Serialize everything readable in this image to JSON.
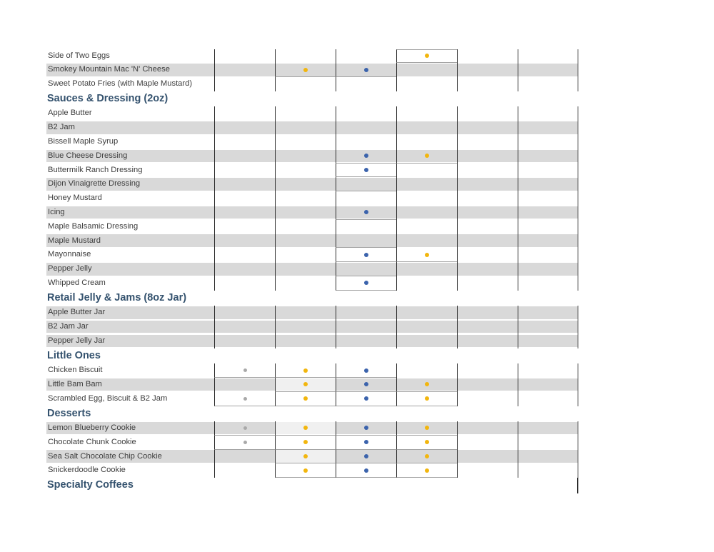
{
  "colors": {
    "stripe": "#d9d9d9",
    "column_line": "#2d2d2d",
    "hairline": "#a3a3a3",
    "header_text": "#34526e",
    "item_text": "#3d3d3d",
    "dot_blue": "#3b63ac",
    "dot_yellow": "#f2b60e",
    "dot_gray": "#a9a9a9"
  },
  "marker_columns": 6,
  "sections": [
    {
      "header": null,
      "rows": [
        {
          "label": "Side of Two Eggs",
          "bg": "white",
          "dots": {
            "4": "yellow"
          },
          "hairlines": [
            4
          ],
          "top_hairlines": [
            4
          ]
        },
        {
          "label": "Smokey Mountain Mac 'N' Cheese",
          "bg": "gray",
          "dots": {
            "2": "yellow",
            "3": "blue"
          },
          "hairlines": [
            2,
            3
          ]
        },
        {
          "label": "Sweet Potato Fries (with Maple Mustard)",
          "bg": "white",
          "dots": {}
        }
      ]
    },
    {
      "header": "Sauces & Dressing (2oz)",
      "rows": [
        {
          "label": "Apple Butter",
          "bg": "white",
          "dots": {}
        },
        {
          "label": "B2 Jam",
          "bg": "gray",
          "dots": {}
        },
        {
          "label": "Bissell Maple Syrup",
          "bg": "white",
          "dots": {}
        },
        {
          "label": "Blue Cheese Dressing",
          "bg": "gray",
          "dots": {
            "3": "blue",
            "4": "yellow"
          },
          "hairlines": [
            3,
            4
          ]
        },
        {
          "label": "Buttermilk Ranch Dressing",
          "bg": "white",
          "dots": {
            "3": "blue"
          },
          "hairlines": [
            3
          ]
        },
        {
          "label": "Dijon Vinaigrette Dressing",
          "bg": "gray",
          "dots": {},
          "hairlines": [
            3
          ]
        },
        {
          "label": "Honey Mustard",
          "bg": "white",
          "dots": {}
        },
        {
          "label": "Icing",
          "bg": "gray",
          "dots": {
            "3": "blue"
          },
          "hairlines": [
            3
          ]
        },
        {
          "label": "Maple Balsamic Dressing",
          "bg": "white",
          "dots": {}
        },
        {
          "label": "Maple Mustard",
          "bg": "gray",
          "dots": {},
          "hairlines": [
            3
          ]
        },
        {
          "label": "Mayonnaise",
          "bg": "white",
          "dots": {
            "3": "blue",
            "4": "yellow"
          },
          "hairlines": [
            3,
            4
          ]
        },
        {
          "label": "Pepper Jelly",
          "bg": "gray",
          "dots": {},
          "hairlines": [
            3
          ]
        },
        {
          "label": "Whipped Cream",
          "bg": "white",
          "dots": {
            "3": "blue"
          },
          "hairlines": [
            3
          ]
        }
      ]
    },
    {
      "header": "Retail Jelly & Jams (8oz Jar)",
      "rows": [
        {
          "label": "Apple Butter Jar",
          "bg": "gray",
          "dots": {}
        },
        {
          "label": "B2 Jam Jar",
          "bg": "gray",
          "dots": {}
        },
        {
          "label": "Pepper Jelly Jar",
          "bg": "gray",
          "dots": {}
        }
      ]
    },
    {
      "header": "Little Ones",
      "rows": [
        {
          "label": "Chicken Biscuit",
          "bg": "white",
          "dots": {
            "1": "gray",
            "2": "yellow",
            "3": "blue"
          },
          "hairlines": [
            1,
            2,
            3
          ]
        },
        {
          "label": "Little Bam Bam",
          "bg": "gray",
          "dots": {
            "2": "yellow",
            "3": "blue",
            "4": "yellow"
          },
          "hairlines": [
            2,
            3,
            4
          ],
          "light": [
            2
          ]
        },
        {
          "label": "Scrambled Egg, Biscuit & B2 Jam",
          "bg": "white",
          "dots": {
            "1": "gray",
            "2": "yellow",
            "3": "blue",
            "4": "yellow"
          },
          "hairlines": [
            1,
            2,
            3,
            4
          ]
        }
      ]
    },
    {
      "header": "Desserts",
      "rows": [
        {
          "label": "Lemon Blueberry Cookie",
          "bg": "gray",
          "dots": {
            "1": "gray",
            "2": "yellow",
            "3": "blue",
            "4": "yellow"
          },
          "hairlines": [
            1,
            2,
            3,
            4
          ],
          "light": [
            2
          ]
        },
        {
          "label": "Chocolate Chunk Cookie",
          "bg": "white",
          "dots": {
            "1": "gray",
            "2": "yellow",
            "3": "blue",
            "4": "yellow"
          },
          "hairlines": [
            1,
            2,
            3,
            4
          ]
        },
        {
          "label": "Sea Salt Chocolate Chip Cookie",
          "bg": "gray",
          "dots": {
            "2": "yellow",
            "3": "blue",
            "4": "yellow"
          },
          "hairlines": [
            2,
            3,
            4
          ],
          "light": [
            2
          ]
        },
        {
          "label": "Snickerdoodle Cookie",
          "bg": "white",
          "dots": {
            "2": "yellow",
            "3": "blue",
            "4": "yellow"
          },
          "hairlines": [
            2,
            3,
            4
          ]
        }
      ]
    },
    {
      "header": "Specialty Coffees",
      "rows": [],
      "tail_line": true
    }
  ]
}
